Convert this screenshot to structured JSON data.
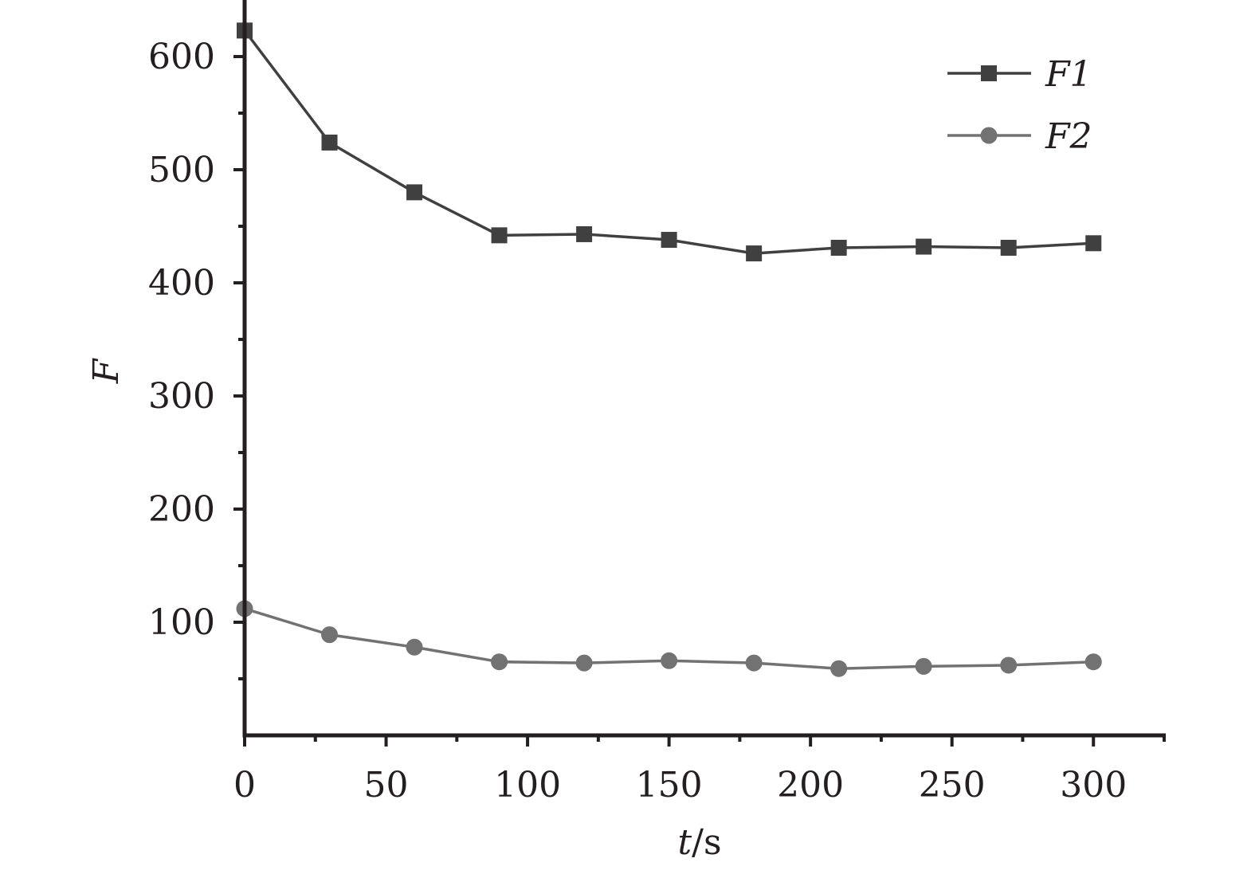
{
  "chart_data": {
    "type": "line",
    "title": "",
    "xlabel_italic": "t",
    "xlabel_rest": "/s",
    "ylabel": "F",
    "xlim": [
      0,
      325
    ],
    "ylim": [
      0,
      650
    ],
    "x_ticks": [
      0,
      50,
      100,
      150,
      200,
      250,
      300
    ],
    "x_tick_labels": [
      "0",
      "50",
      "100",
      "150",
      "200",
      "250",
      "300"
    ],
    "y_ticks": [
      100,
      200,
      300,
      400,
      500,
      600
    ],
    "y_tick_labels": [
      "100",
      "200",
      "300",
      "400",
      "500",
      "600"
    ],
    "x_minor_ticks": [
      25,
      75,
      125,
      175,
      225,
      275,
      325
    ],
    "y_minor_ticks": [
      50,
      150,
      250,
      350,
      450,
      550
    ],
    "grid": false,
    "legend_position": "top-right",
    "x": [
      0,
      30,
      60,
      90,
      120,
      150,
      180,
      210,
      240,
      270,
      300
    ],
    "series": [
      {
        "name": "F1",
        "marker": "square",
        "color": "#404040",
        "values": [
          623,
          524,
          480,
          442,
          443,
          438,
          426,
          431,
          432,
          431,
          435
        ]
      },
      {
        "name": "F2",
        "marker": "circle",
        "color": "#727272",
        "values": [
          112,
          89,
          78,
          65,
          64,
          66,
          64,
          59,
          61,
          62,
          65
        ]
      }
    ]
  }
}
